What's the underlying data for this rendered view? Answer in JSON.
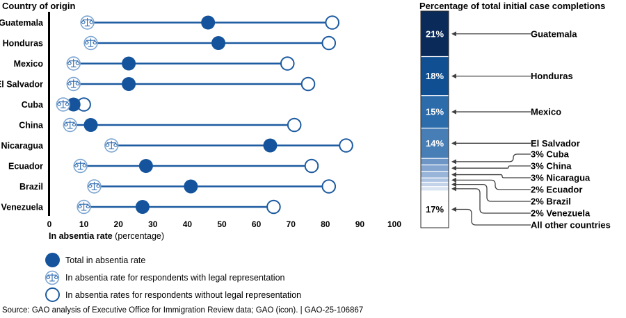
{
  "figure": {
    "source": "Source: GAO analysis of Executive Office for Immigration Review data; GAO (icon).  |  GAO-25-106867"
  },
  "left_chart": {
    "title": "Country of origin",
    "xlabel_bold": "In absentia rate",
    "xlabel_suffix": " (percentage)"
  },
  "right_chart": {
    "title": "Percentage of total initial case completions"
  },
  "legend": {
    "items": [
      {
        "icon": "filled-circle",
        "label": "Total in absentia rate"
      },
      {
        "icon": "scales",
        "label": "In absentia rate for respondents with legal representation"
      },
      {
        "icon": "open-circle",
        "label": "In absentia rates for respondents without legal representation"
      }
    ]
  },
  "colors": {
    "dumbbell_line": "#1c5aa0",
    "total_dot": "#15549c",
    "open_dot_stroke": "#1c5aa0",
    "scales_ring": "#7ea6d2",
    "scales_glyph": "#2e6ab0",
    "connector": "#3f3f3f",
    "axis": "#000000"
  },
  "chart_data": [
    {
      "type": "dumbbell",
      "title": "Country of origin",
      "xlabel": "In absentia rate (percentage)",
      "xlim": [
        0,
        100
      ],
      "x_ticks": [
        0,
        10,
        20,
        30,
        40,
        50,
        60,
        70,
        80,
        90,
        100
      ],
      "unit": "percent",
      "series_meaning": {
        "total": "Total in absentia rate",
        "with_representation": "In absentia rate for respondents with legal representation",
        "without_representation": "In absentia rates for respondents without legal representation"
      },
      "rows": [
        {
          "country": "Guatemala",
          "with_representation": 11,
          "total": 46,
          "without_representation": 82
        },
        {
          "country": "Honduras",
          "with_representation": 12,
          "total": 49,
          "without_representation": 81
        },
        {
          "country": "Mexico",
          "with_representation": 7,
          "total": 23,
          "without_representation": 69
        },
        {
          "country": "El Salvador",
          "with_representation": 7,
          "total": 23,
          "without_representation": 75
        },
        {
          "country": "Cuba",
          "with_representation": 4,
          "total": 7,
          "without_representation": 10
        },
        {
          "country": "China",
          "with_representation": 6,
          "total": 12,
          "without_representation": 71
        },
        {
          "country": "Nicaragua",
          "with_representation": 18,
          "total": 64,
          "without_representation": 86
        },
        {
          "country": "Ecuador",
          "with_representation": 9,
          "total": 28,
          "without_representation": 76
        },
        {
          "country": "Brazil",
          "with_representation": 13,
          "total": 41,
          "without_representation": 81
        },
        {
          "country": "Venezuela",
          "with_representation": 10,
          "total": 27,
          "without_representation": 65
        }
      ]
    },
    {
      "type": "bar",
      "variant": "stacked-single-column",
      "title": "Percentage of total initial case completions",
      "total": 100,
      "segments": [
        {
          "label": "Guatemala",
          "value": 21,
          "inside_label": "21%",
          "color": "#0a2a5a",
          "inside_label_color": "#ffffff",
          "callout": "Guatemala"
        },
        {
          "label": "Honduras",
          "value": 18,
          "inside_label": "18%",
          "color": "#0f4f92",
          "inside_label_color": "#ffffff",
          "callout": "Honduras"
        },
        {
          "label": "Mexico",
          "value": 15,
          "inside_label": "15%",
          "color": "#2d6cab",
          "inside_label_color": "#ffffff",
          "callout": "Mexico"
        },
        {
          "label": "El Salvador",
          "value": 14,
          "inside_label": "14%",
          "color": "#487eb6",
          "inside_label_color": "#ffffff",
          "callout": "El Salvador"
        },
        {
          "label": "Cuba",
          "value": 3,
          "inside_label": "",
          "color": "#6d95c5",
          "inside_label_color": "",
          "callout": "3% Cuba"
        },
        {
          "label": "China",
          "value": 3,
          "inside_label": "",
          "color": "#83a5d0",
          "inside_label_color": "",
          "callout": "3% China"
        },
        {
          "label": "Nicaragua",
          "value": 3,
          "inside_label": "",
          "color": "#99b4d9",
          "inside_label_color": "",
          "callout": "3% Nicaragua"
        },
        {
          "label": "Ecuador",
          "value": 2,
          "inside_label": "",
          "color": "#afc4e2",
          "inside_label_color": "",
          "callout": "2% Ecuador"
        },
        {
          "label": "Brazil",
          "value": 2,
          "inside_label": "",
          "color": "#c4d3ea",
          "inside_label_color": "",
          "callout": "2% Brazil"
        },
        {
          "label": "Venezuela",
          "value": 2,
          "inside_label": "",
          "color": "#dae3f2",
          "inside_label_color": "",
          "callout": "2% Venezuela"
        },
        {
          "label": "All other countries",
          "value": 17,
          "inside_label": "17%",
          "color": "#ffffff",
          "inside_label_color": "#000000",
          "callout": "All other countries"
        }
      ]
    }
  ]
}
